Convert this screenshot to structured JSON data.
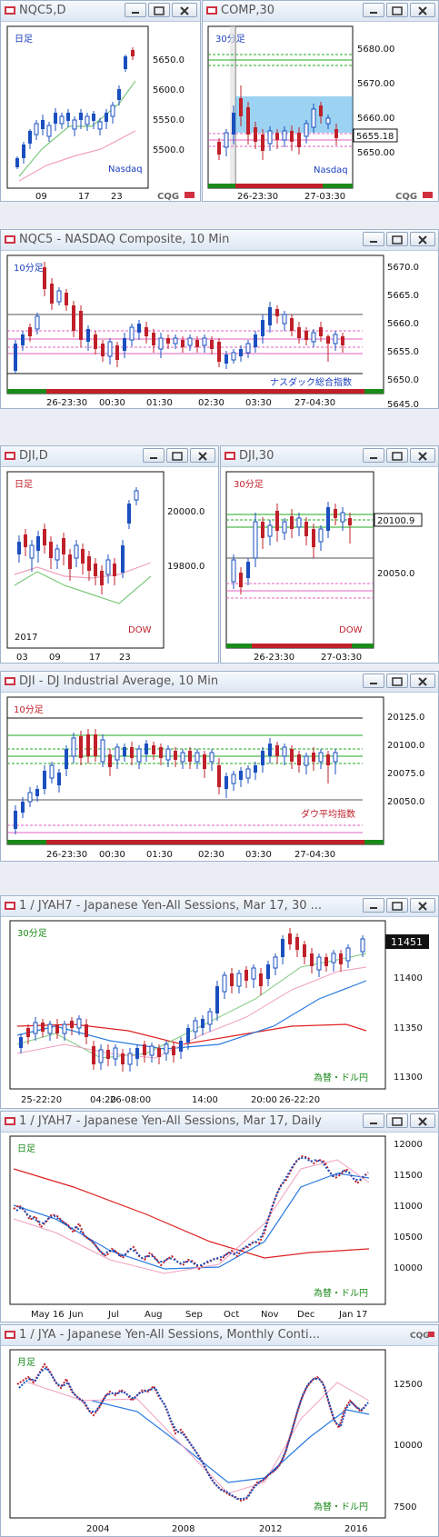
{
  "colors": {
    "bull": "#1a4fbf",
    "bear": "#c0202a",
    "grid_green": "#22aa22",
    "grid_pink": "#e060c0",
    "ma_red": "#e02020",
    "ma_blue": "#2a7ae0",
    "ma_green": "#7cc87c",
    "ma_pink": "#f0a0c0",
    "highlight": "#4aaee8"
  },
  "logo_text": "CQG",
  "windows": [
    {
      "title": "NQC5,D",
      "tag": "日足",
      "instrument": "Nasdaq",
      "y_labels": [
        "5650.0",
        "5600.0",
        "5550.0",
        "5500.0"
      ],
      "x_labels": [
        "09",
        "17",
        "23"
      ],
      "chart_data": {
        "type": "candlestick",
        "title": "NQC5,D",
        "y_ticks": [
          5650,
          5600,
          5550,
          5500
        ],
        "last_value": 5663
      }
    },
    {
      "title": "COMP,30",
      "tag": "30分足",
      "instrument": "Nasdaq",
      "y_labels": [
        "5680.00",
        "5670.00",
        "5660.00",
        "5650.00"
      ],
      "last_price": "5655.18",
      "x_labels": [
        "26-23:30",
        "27-03:30"
      ],
      "chart_data": {
        "type": "candlestick",
        "title": "COMP,30",
        "y_ticks": [
          5680,
          5670,
          5660,
          5650
        ],
        "last_value": 5655.18
      }
    },
    {
      "title": "NQC5 - NASDAQ Composite, 10 Min",
      "tag": "10分足",
      "instrument": "ナスダック総合指数",
      "y_labels": [
        "5670.0",
        "5665.0",
        "5660.0",
        "5655.0",
        "5650.0",
        "5645.0"
      ],
      "x_labels": [
        "26-23:30",
        "00:30",
        "01:30",
        "02:30",
        "03:30",
        "27-04:30"
      ],
      "chart_data": {
        "type": "candlestick",
        "title": "NQC5 - NASDAQ Composite, 10 Min",
        "y_ticks": [
          5670,
          5665,
          5660,
          5655,
          5650,
          5645
        ]
      }
    },
    {
      "title": "DJI,D",
      "tag": "日足",
      "instrument": "DOW",
      "year": "2017",
      "y_labels": [
        "20000.0",
        "19800.0"
      ],
      "x_labels": [
        "03",
        "09",
        "17",
        "23"
      ],
      "chart_data": {
        "type": "candlestick",
        "title": "DJI,D",
        "y_ticks": [
          20000,
          19800
        ]
      }
    },
    {
      "title": "DJI,30",
      "tag": "30分足",
      "instrument": "DOW",
      "y_labels": [
        "20050.0"
      ],
      "last_price": "20100.9",
      "x_labels": [
        "26-23:30",
        "27-03:30"
      ],
      "chart_data": {
        "type": "candlestick",
        "title": "DJI,30",
        "y_ticks": [
          20050
        ],
        "last_value": 20100.9
      }
    },
    {
      "title": "DJI - DJ Industrial Average, 10 Min",
      "tag": "10分足",
      "instrument": "ダウ平均指数",
      "y_labels": [
        "20125.0",
        "20100.0",
        "20075.0",
        "20050.0"
      ],
      "x_labels": [
        "26-23:30",
        "00:30",
        "01:30",
        "02:30",
        "03:30",
        "27-04:30"
      ],
      "chart_data": {
        "type": "candlestick",
        "title": "DJI - DJ Industrial Average, 10 Min",
        "y_ticks": [
          20125,
          20100,
          20075,
          20050
        ]
      }
    },
    {
      "title": "1 / JYAH7 - Japanese Yen-All Sessions, Mar 17, 30 ...",
      "tag": "30分足",
      "instrument": "為替・ドル円",
      "y_labels": [
        "11400",
        "11350",
        "11300"
      ],
      "last_price": "11451",
      "x_labels": [
        "25-22:20",
        "04:20",
        "26-08:00",
        "14:00",
        "20:00",
        "26-22:20"
      ],
      "chart_data": {
        "type": "candlestick",
        "title": "1 / JYAH7 - Japanese Yen-All Sessions, Mar 17, 30",
        "y_ticks": [
          11400,
          11350,
          11300
        ],
        "last_value": 11451
      }
    },
    {
      "title": "1 / JYAH7 - Japanese Yen-All Sessions, Mar 17, Daily",
      "tag": "日足",
      "instrument": "為替・ドル円",
      "y_labels": [
        "12000",
        "11500",
        "11000",
        "10500",
        "10000"
      ],
      "x_labels": [
        "May 16",
        "Jun",
        "Jul",
        "Aug",
        "Sep",
        "Oct",
        "Nov",
        "Dec",
        "Jan 17"
      ],
      "chart_data": {
        "type": "candlestick",
        "title": "1 / JYAH7 - Japanese Yen-All Sessions, Mar 17, Daily",
        "y_ticks": [
          12000,
          11500,
          11000,
          10500,
          10000
        ]
      }
    },
    {
      "title": "1 / JYA - Japanese Yen-All Sessions, Monthly Conti...",
      "tag": "月足",
      "instrument": "為替・ドル円",
      "y_labels": [
        "12500",
        "10000",
        "7500"
      ],
      "x_labels": [
        "2004",
        "2008",
        "2012",
        "2016"
      ],
      "chart_data": {
        "type": "candlestick",
        "title": "1 / JYA - Japanese Yen-All Sessions, Monthly Conti",
        "y_ticks": [
          12500,
          10000,
          7500
        ]
      }
    }
  ]
}
